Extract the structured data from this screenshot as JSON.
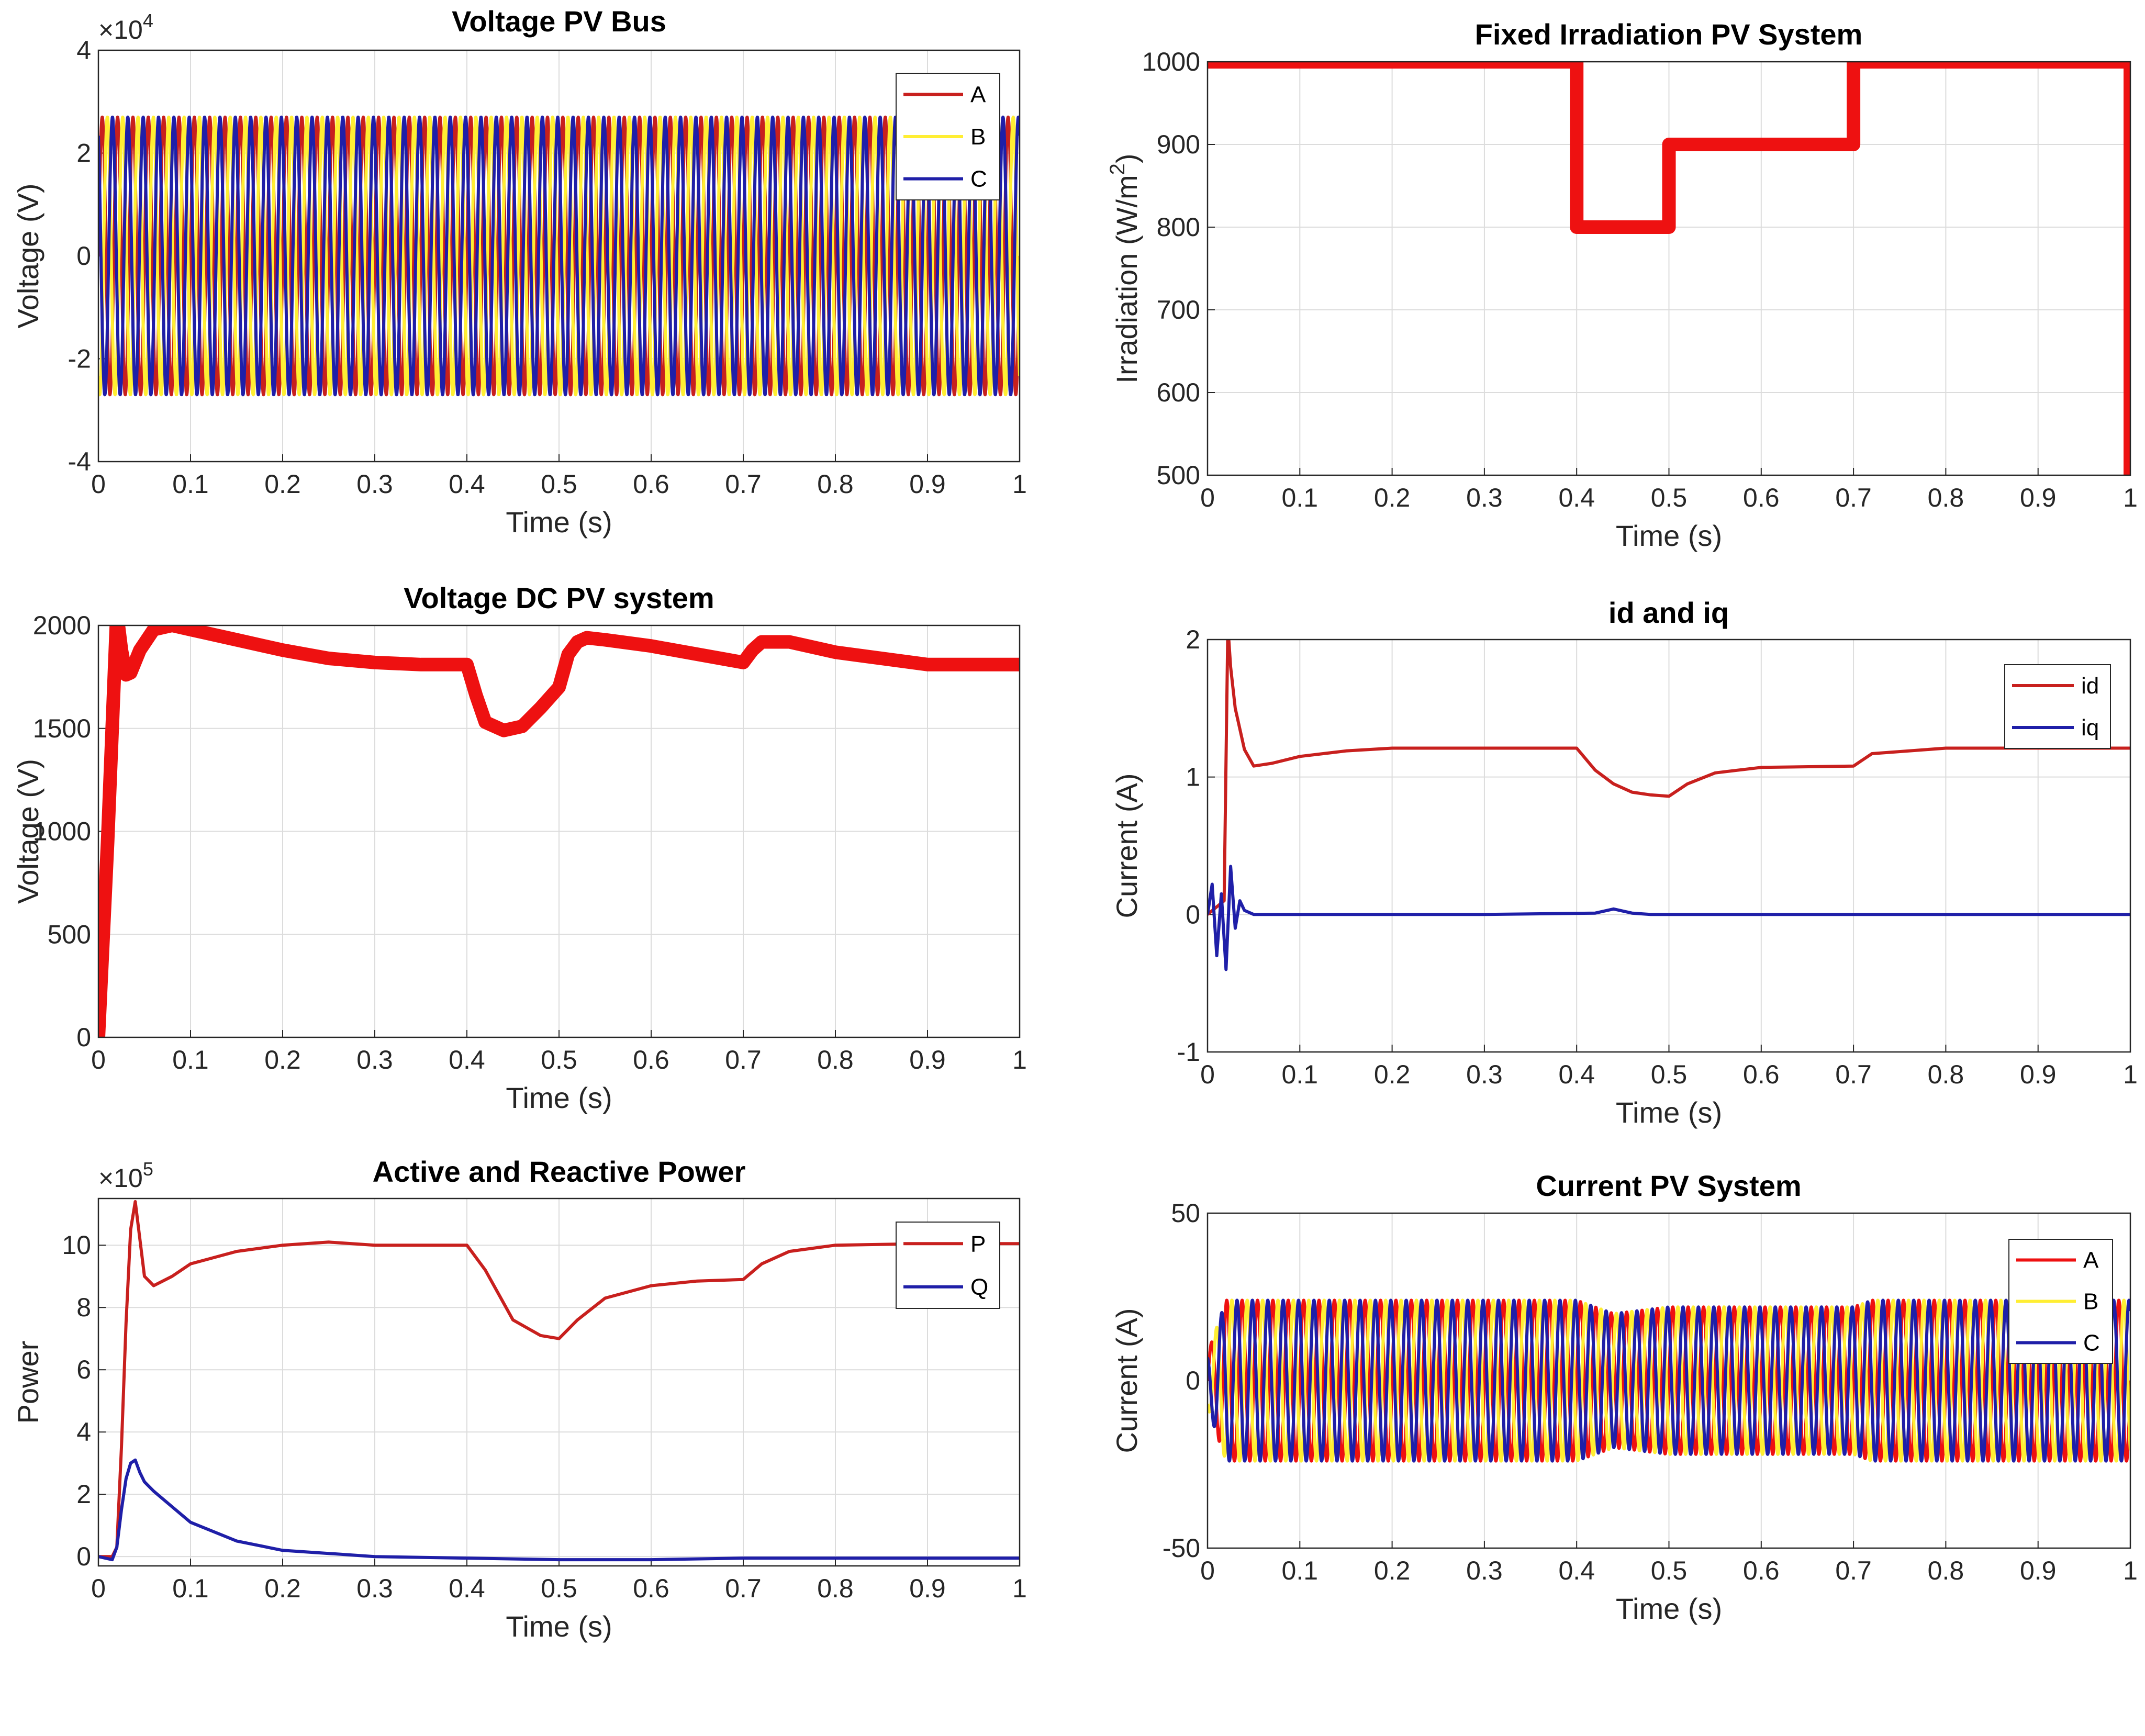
{
  "chart_data": [
    {
      "type": "line",
      "title": "Voltage PV Bus",
      "xlabel": "Time (s)",
      "ylabel": "Voltage (V)",
      "xlim": [
        0,
        1
      ],
      "ylim": [
        -4,
        4
      ],
      "y_exponent": "4",
      "xticks": [
        "0",
        "0.1",
        "0.2",
        "0.3",
        "0.4",
        "0.5",
        "0.6",
        "0.7",
        "0.8",
        "0.9",
        "1"
      ],
      "yticks": [
        "-4",
        "-2",
        "0",
        "2",
        "4"
      ],
      "grid": true,
      "legend": "top-right",
      "waveform": {
        "kind": "sine3",
        "frequency_hz": 60,
        "amplitude": 2.7
      },
      "series": [
        {
          "name": "A",
          "color": "#c8201e",
          "phase_deg": 0
        },
        {
          "name": "B",
          "color": "#ffee33",
          "phase_deg": -120
        },
        {
          "name": "C",
          "color": "#1f1fa8",
          "phase_deg": 120
        }
      ]
    },
    {
      "type": "line",
      "title": "Fixed Irradiation PV System",
      "xlabel": "Time (s)",
      "ylabel": "Irradiation (W/m",
      "ylabel_sup": "2",
      "ylabel_end": ")",
      "xlim": [
        0,
        1
      ],
      "ylim": [
        500,
        1000
      ],
      "xticks": [
        "0",
        "0.1",
        "0.2",
        "0.3",
        "0.4",
        "0.5",
        "0.6",
        "0.7",
        "0.8",
        "0.9",
        "1"
      ],
      "yticks": [
        "500",
        "600",
        "700",
        "800",
        "900",
        "1000"
      ],
      "grid": true,
      "series": [
        {
          "color": "#ee1111",
          "x": [
            0,
            0.4,
            0.4,
            0.5,
            0.5,
            0.7,
            0.7,
            1.0,
            1.0
          ],
          "y": [
            1000,
            1000,
            800,
            800,
            900,
            900,
            1000,
            1000,
            500
          ]
        }
      ]
    },
    {
      "type": "line",
      "title": "Voltage DC PV system",
      "xlabel": "Time (s)",
      "ylabel": "Voltage (V)",
      "xlim": [
        0,
        1
      ],
      "ylim": [
        0,
        2000
      ],
      "xticks": [
        "0",
        "0.1",
        "0.2",
        "0.3",
        "0.4",
        "0.5",
        "0.6",
        "0.7",
        "0.8",
        "0.9",
        "1"
      ],
      "yticks": [
        "0",
        "500",
        "1000",
        "1500",
        "2000"
      ],
      "grid": true,
      "series": [
        {
          "color": "#ee1111",
          "x": [
            0,
            0.01,
            0.02,
            0.025,
            0.03,
            0.035,
            0.045,
            0.06,
            0.08,
            0.1,
            0.15,
            0.2,
            0.25,
            0.3,
            0.35,
            0.4,
            0.41,
            0.42,
            0.44,
            0.46,
            0.48,
            0.5,
            0.51,
            0.52,
            0.53,
            0.55,
            0.6,
            0.65,
            0.7,
            0.71,
            0.72,
            0.75,
            0.8,
            0.9,
            1.0
          ],
          "y": [
            0,
            950,
            2060,
            1880,
            1760,
            1770,
            1880,
            1980,
            2000,
            1980,
            1930,
            1880,
            1840,
            1820,
            1810,
            1810,
            1660,
            1530,
            1490,
            1510,
            1600,
            1700,
            1860,
            1920,
            1940,
            1930,
            1900,
            1860,
            1820,
            1880,
            1920,
            1920,
            1870,
            1810,
            1810
          ]
        }
      ]
    },
    {
      "type": "line",
      "title": "id and iq",
      "xlabel": "Time (s)",
      "ylabel": "Current (A)",
      "xlim": [
        0,
        1
      ],
      "ylim": [
        -1,
        2
      ],
      "xticks": [
        "0",
        "0.1",
        "0.2",
        "0.3",
        "0.4",
        "0.5",
        "0.6",
        "0.7",
        "0.8",
        "0.9",
        "1"
      ],
      "yticks": [
        "-1",
        "0",
        "1",
        "2"
      ],
      "grid": true,
      "legend": "top-right",
      "series": [
        {
          "name": "id",
          "color": "#c8201e",
          "x": [
            0,
            0.018,
            0.022,
            0.025,
            0.03,
            0.04,
            0.05,
            0.07,
            0.1,
            0.15,
            0.2,
            0.3,
            0.4,
            0.42,
            0.44,
            0.46,
            0.48,
            0.5,
            0.52,
            0.55,
            0.6,
            0.7,
            0.72,
            0.8,
            1.0
          ],
          "y": [
            0,
            0.1,
            2.1,
            1.8,
            1.5,
            1.2,
            1.08,
            1.1,
            1.15,
            1.19,
            1.21,
            1.21,
            1.21,
            1.05,
            0.95,
            0.89,
            0.87,
            0.86,
            0.95,
            1.03,
            1.07,
            1.08,
            1.17,
            1.21,
            1.21
          ]
        },
        {
          "name": "iq",
          "color": "#1f1fa8",
          "x": [
            0,
            0.005,
            0.01,
            0.015,
            0.02,
            0.025,
            0.03,
            0.035,
            0.04,
            0.05,
            0.07,
            0.1,
            0.3,
            0.42,
            0.44,
            0.46,
            0.48,
            0.5,
            0.7,
            1.0
          ],
          "y": [
            0,
            0.22,
            -0.3,
            0.15,
            -0.4,
            0.35,
            -0.1,
            0.1,
            0.03,
            0,
            0,
            0,
            0,
            0.01,
            0.04,
            0.01,
            0,
            0,
            0,
            0
          ]
        }
      ]
    },
    {
      "type": "line",
      "title": "Active and Reactive Power",
      "xlabel": "Time (s)",
      "ylabel": "Power",
      "xlim": [
        0,
        1
      ],
      "ylim": [
        -0.3,
        11.5
      ],
      "y_exponent": "5",
      "xticks": [
        "0",
        "0.1",
        "0.2",
        "0.3",
        "0.4",
        "0.5",
        "0.6",
        "0.7",
        "0.8",
        "0.9",
        "1"
      ],
      "yticks": [
        "0",
        "2",
        "4",
        "6",
        "8",
        "10"
      ],
      "grid": true,
      "legend": "top-right",
      "series": [
        {
          "name": "P",
          "color": "#c8201e",
          "x": [
            0,
            0.015,
            0.02,
            0.025,
            0.03,
            0.035,
            0.04,
            0.045,
            0.05,
            0.06,
            0.08,
            0.1,
            0.15,
            0.2,
            0.25,
            0.3,
            0.35,
            0.4,
            0.42,
            0.45,
            0.48,
            0.5,
            0.52,
            0.55,
            0.6,
            0.65,
            0.7,
            0.72,
            0.75,
            0.8,
            0.9,
            1.0
          ],
          "y": [
            0,
            0,
            0.3,
            3.5,
            7.5,
            10.5,
            11.4,
            10.2,
            9.0,
            8.7,
            9.0,
            9.4,
            9.8,
            10.0,
            10.1,
            10.0,
            10.0,
            10.0,
            9.2,
            7.6,
            7.1,
            7.0,
            7.6,
            8.3,
            8.7,
            8.85,
            8.9,
            9.4,
            9.8,
            10.0,
            10.05,
            10.05
          ]
        },
        {
          "name": "Q",
          "color": "#1f1fa8",
          "x": [
            0,
            0.015,
            0.02,
            0.025,
            0.03,
            0.035,
            0.04,
            0.045,
            0.05,
            0.06,
            0.08,
            0.1,
            0.15,
            0.2,
            0.25,
            0.3,
            0.4,
            0.5,
            0.6,
            0.7,
            0.8,
            0.9,
            1.0
          ],
          "y": [
            0,
            -0.1,
            0.3,
            1.5,
            2.5,
            3.0,
            3.1,
            2.7,
            2.4,
            2.1,
            1.6,
            1.1,
            0.5,
            0.2,
            0.1,
            0.0,
            -0.05,
            -0.1,
            -0.1,
            -0.05,
            -0.05,
            -0.05,
            -0.05
          ]
        }
      ]
    },
    {
      "type": "line",
      "title": "Current PV System",
      "xlabel": "Time (s)",
      "ylabel": "Current (A)",
      "xlim": [
        0,
        1
      ],
      "ylim": [
        -50,
        50
      ],
      "xticks": [
        "0",
        "0.1",
        "0.2",
        "0.3",
        "0.4",
        "0.5",
        "0.6",
        "0.7",
        "0.8",
        "0.9",
        "1"
      ],
      "yticks": [
        "-50",
        "0",
        "50"
      ],
      "grid": true,
      "legend": "top-right",
      "waveform": {
        "kind": "sine3",
        "frequency_hz": 60,
        "envelope_x": [
          0,
          0.02,
          0.4,
          0.44,
          0.5,
          0.7,
          0.72,
          1.0
        ],
        "envelope_y": [
          8,
          24,
          24,
          20,
          22,
          22,
          24,
          24
        ]
      },
      "series": [
        {
          "name": "A",
          "color": "#ee1111",
          "phase_deg": 0
        },
        {
          "name": "B",
          "color": "#ffee33",
          "phase_deg": -120
        },
        {
          "name": "C",
          "color": "#1f1fa8",
          "phase_deg": 120
        }
      ]
    }
  ]
}
